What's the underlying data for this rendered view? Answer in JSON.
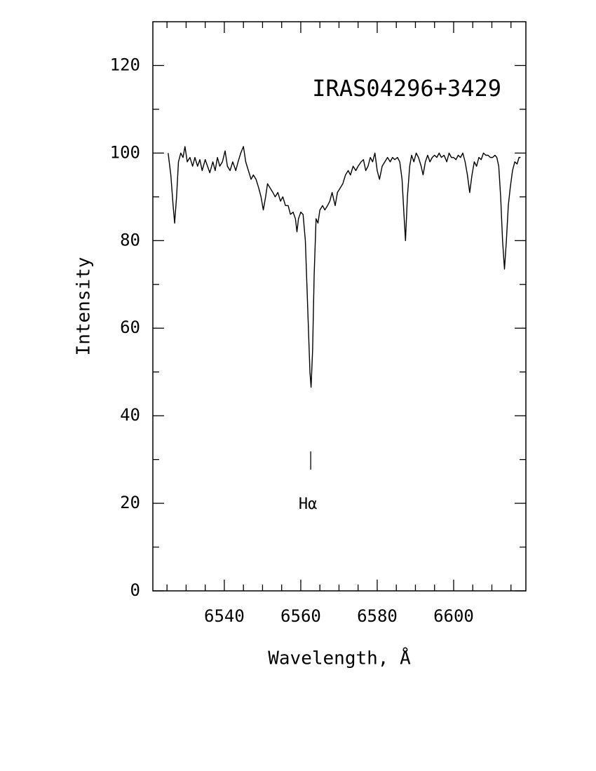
{
  "chart_data": {
    "type": "line",
    "title": "IRAS04296+3429",
    "x_label": "Wavelength, Å",
    "y_label": "Intensity",
    "color": "#000000",
    "xlim": [
      6521.3,
      6618.9
    ],
    "ylim": [
      0,
      130
    ],
    "xticks": [
      6540,
      6560,
      6580,
      6600
    ],
    "xticks_minor": [
      6525,
      6530,
      6535,
      6545,
      6550,
      6555,
      6565,
      6570,
      6575,
      6585,
      6590,
      6595,
      6605,
      6610,
      6615
    ],
    "yticks": [
      0,
      20,
      40,
      60,
      80,
      100,
      120
    ],
    "yticks_minor": [
      10,
      30,
      50,
      70,
      90,
      110
    ],
    "annotations": [
      {
        "text": "Hα",
        "x": 6562.6,
        "y": 20
      }
    ],
    "x": [
      6525.3,
      6526,
      6526.6,
      6527.0,
      6527.5,
      6528.0,
      6528.6,
      6529.2,
      6529.7,
      6530.3,
      6531,
      6531.7,
      6532.3,
      6533,
      6533.6,
      6534.2,
      6535,
      6535.6,
      6536.2,
      6537,
      6537.6,
      6538.2,
      6538.8,
      6539.5,
      6540.2,
      6540.8,
      6541.5,
      6542.2,
      6543,
      6543.6,
      6544.3,
      6545,
      6545.6,
      6546.3,
      6547,
      6547.6,
      6548.3,
      6549,
      6549.6,
      6550.2,
      6550.8,
      6551.3,
      6552,
      6552.7,
      6553.3,
      6554,
      6554.7,
      6555.3,
      6556,
      6556.7,
      6557.3,
      6558,
      6558.6,
      6559,
      6559.4,
      6560,
      6560.6,
      6561.2,
      6561.8,
      6562.4,
      6562.7,
      6563.1,
      6563.5,
      6564,
      6564.5,
      6565,
      6565.7,
      6566.3,
      6567,
      6567.6,
      6568.2,
      6569,
      6569.6,
      6570.3,
      6571,
      6571.7,
      6572.4,
      6573,
      6573.7,
      6574.4,
      6575,
      6575.8,
      6576.4,
      6577,
      6577.6,
      6578.2,
      6578.8,
      6579.4,
      6580,
      6580.6,
      6581.3,
      6582,
      6582.7,
      6583.4,
      6584,
      6584.6,
      6585.3,
      6585.9,
      6586.5,
      6587,
      6587.4,
      6587.9,
      6588.5,
      6589,
      6589.6,
      6590.2,
      6590.8,
      6591.5,
      6592,
      6592.6,
      6593.2,
      6593.8,
      6594.4,
      6595,
      6595.6,
      6596.2,
      6596.8,
      6597.5,
      6598.2,
      6598.8,
      6599.4,
      6600,
      6600.6,
      6601.2,
      6601.8,
      6602.4,
      6603,
      6603.6,
      6604.2,
      6604.8,
      6605.4,
      6606,
      6606.6,
      6607.2,
      6607.8,
      6608.4,
      6609,
      6609.6,
      6610.2,
      6610.8,
      6611.3,
      6611.8,
      6612.3,
      6612.8,
      6613.3,
      6613.8,
      6614.3,
      6614.8,
      6615.4,
      6616,
      6616.6,
      6617.1,
      6617.5
    ],
    "values": [
      100,
      95,
      88,
      84,
      90,
      98,
      100,
      99,
      101.5,
      98,
      99,
      97,
      99,
      97,
      98.5,
      96,
      98.5,
      97,
      95.5,
      98,
      96,
      99,
      97,
      98,
      100.5,
      97,
      96,
      98,
      96,
      98,
      100,
      101.5,
      98,
      96,
      94,
      95,
      94,
      92,
      90,
      87,
      90,
      93,
      92,
      91,
      90,
      91,
      89,
      90,
      88,
      88,
      86,
      86.5,
      85,
      82,
      85,
      86.5,
      86,
      80,
      65,
      50,
      46.5,
      55,
      72,
      85,
      84,
      87,
      88,
      87,
      88,
      89,
      91,
      88,
      91,
      92,
      93,
      95,
      96,
      95,
      97,
      96,
      97,
      98,
      98.5,
      96,
      97,
      99,
      98,
      100,
      96,
      94,
      97,
      98,
      99,
      98,
      99,
      98.5,
      99,
      98,
      94,
      86,
      80,
      90,
      97,
      99.5,
      98,
      100,
      99,
      97,
      95,
      98,
      99.5,
      98,
      99,
      99.5,
      99,
      100,
      99,
      99.5,
      98,
      100,
      99,
      99,
      98.5,
      99.5,
      99,
      100,
      98,
      95,
      91,
      95,
      98,
      97,
      99,
      98.5,
      100,
      99.5,
      99.5,
      99,
      99,
      99.5,
      99,
      97,
      90,
      80,
      73.5,
      80,
      88,
      92,
      96,
      98,
      97.5,
      99,
      99
    ]
  }
}
